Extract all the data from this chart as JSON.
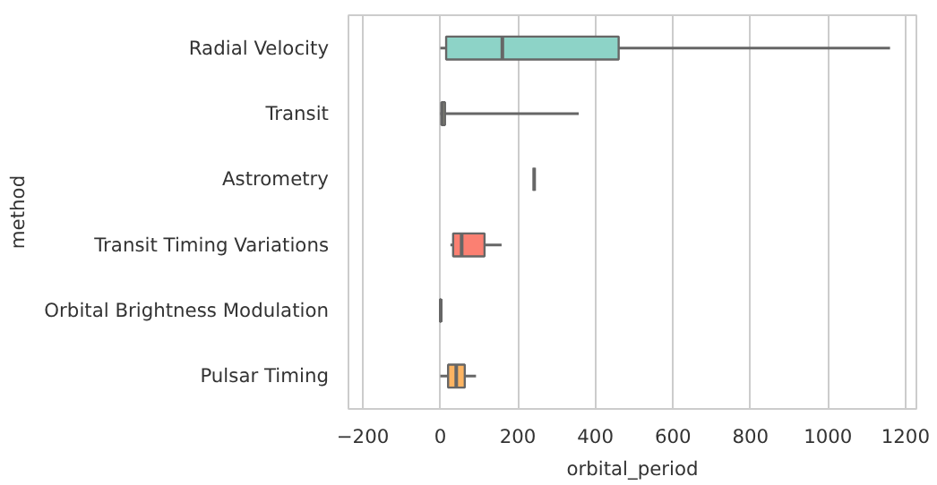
{
  "chart_data": {
    "type": "box",
    "orientation": "horizontal",
    "xlabel": "orbital_period",
    "ylabel": "method",
    "categories": [
      "Radial Velocity",
      "Transit",
      "Astrometry",
      "Transit Timing Variations",
      "Orbital Brightness Modulation",
      "Pulsar Timing"
    ],
    "colors": [
      "#8dd3c7",
      "#ffffb3",
      "#666666",
      "#fb8072",
      "#80b1d3",
      "#fdb462"
    ],
    "boxes": [
      {
        "low": 0,
        "q1": 15,
        "median": 160,
        "q3": 460,
        "high": 1160
      },
      {
        "low": 0,
        "q1": 3,
        "median": 5,
        "q3": 12,
        "high": 357
      },
      {
        "low": 242,
        "q1": 242,
        "median": 242,
        "q3": 242,
        "high": 242
      },
      {
        "low": 26,
        "q1": 33,
        "median": 55,
        "q3": 114,
        "high": 158
      },
      {
        "low": 0,
        "q1": 0,
        "median": 1,
        "q3": 1,
        "high": 1
      },
      {
        "low": 0,
        "q1": 20,
        "median": 41,
        "q3": 63,
        "high": 92
      }
    ],
    "xlim": [
      -237,
      1228
    ],
    "xticks": [
      -200,
      0,
      200,
      400,
      600,
      800,
      1000,
      1200
    ],
    "grid": "x"
  }
}
